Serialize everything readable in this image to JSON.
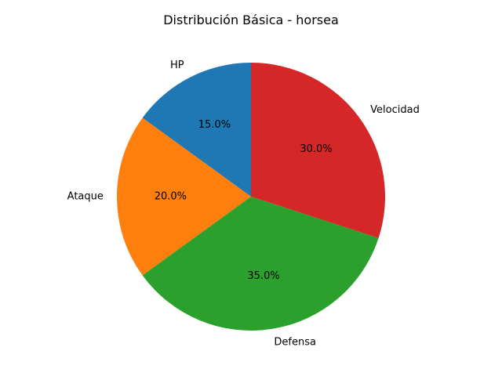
{
  "chart_data": {
    "type": "pie",
    "title": "Distribución Básica - horsea",
    "categories": [
      "HP",
      "Ataque",
      "Defensa",
      "Velocidad"
    ],
    "values": [
      15,
      20,
      35,
      30
    ],
    "percent_labels": [
      "15.0%",
      "20.0%",
      "35.0%",
      "30.0%"
    ],
    "colors": [
      "#1f77b4",
      "#ff7f0e",
      "#2ca02c",
      "#d62728"
    ],
    "start_angle_deg": 90,
    "direction": "counterclockwise",
    "legend": "none"
  }
}
